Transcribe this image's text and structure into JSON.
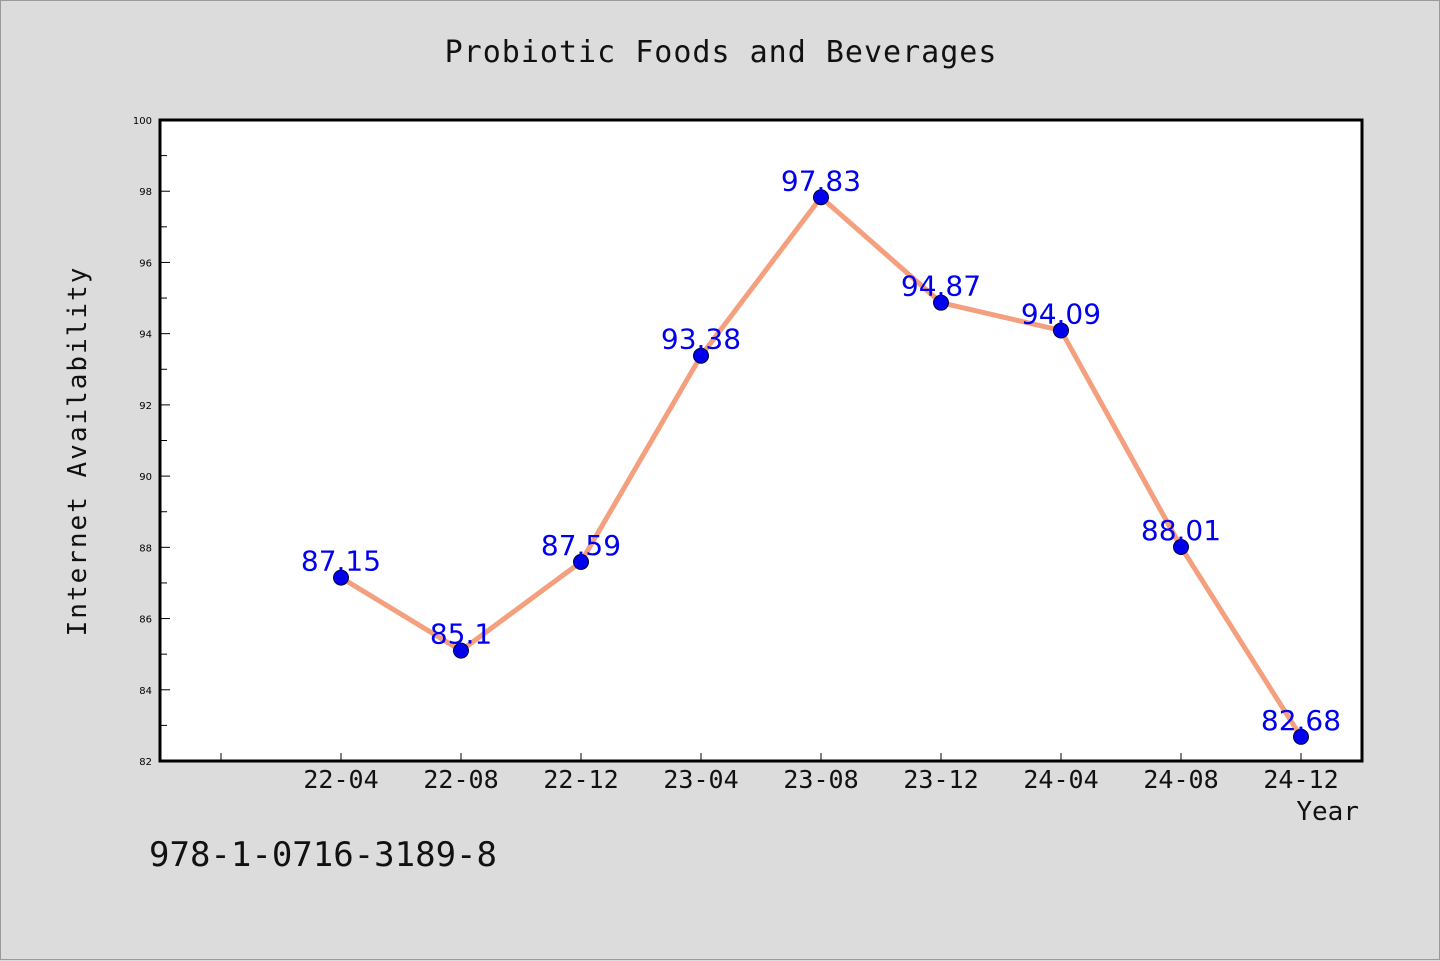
{
  "chart_data": {
    "type": "line",
    "title": "Probiotic Foods and Beverages",
    "xlabel": "Year",
    "ylabel": "Internet Availability",
    "categories": [
      "22-04",
      "22-08",
      "22-12",
      "23-04",
      "23-08",
      "23-12",
      "24-04",
      "24-08",
      "24-12"
    ],
    "series": [
      {
        "values": [
          87.15,
          85.1,
          87.59,
          93.38,
          97.83,
          94.87,
          94.09,
          88.01,
          82.68
        ]
      }
    ],
    "data_labels": [
      "87.15",
      "85.1",
      "87.59",
      "93.38",
      "97.83",
      "94.87",
      "94.09",
      "88.01",
      "82.68"
    ],
    "ylim": [
      82,
      100
    ],
    "yticks": [
      "82",
      "84",
      "86",
      "88",
      "90",
      "92",
      "94",
      "96",
      "98",
      "100"
    ],
    "grid": false,
    "legend": "none",
    "line_color": "#f4a07e",
    "marker_color": "#0000ee",
    "label_color": "#0000ee",
    "plot_background": "#ffffff"
  },
  "footer": {
    "code": "978-1-0716-3189-8"
  }
}
